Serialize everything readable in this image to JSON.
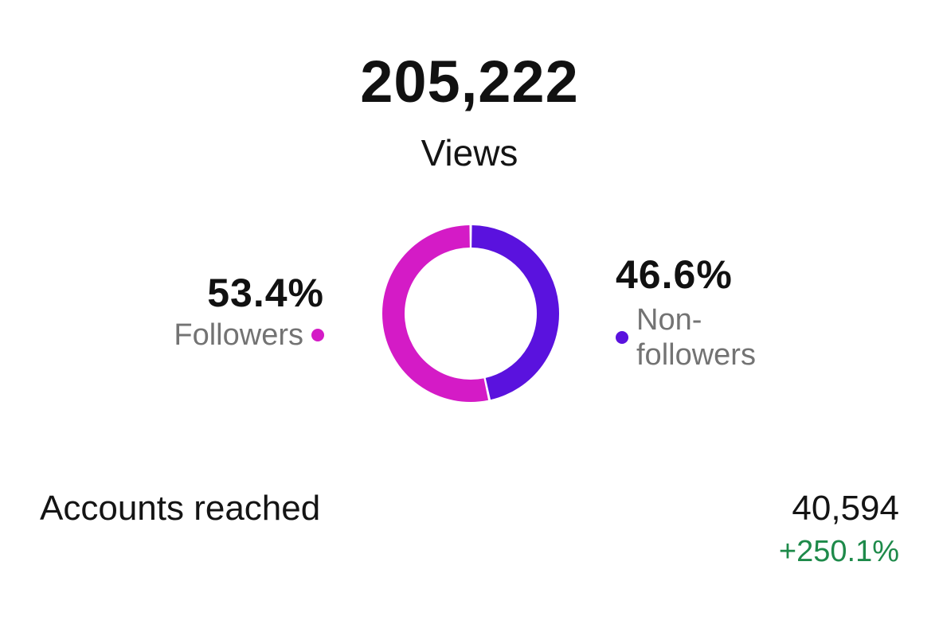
{
  "views": {
    "total": "205,222",
    "label": "Views"
  },
  "audience": {
    "followers": {
      "percent": "53.4%",
      "label": "Followers",
      "value": 53.4,
      "color": "#D41BC6"
    },
    "non_followers": {
      "percent": "46.6%",
      "label": "Non-\nfollowers",
      "value": 46.6,
      "color": "#5A12DE"
    }
  },
  "accounts_reached": {
    "label": "Accounts reached",
    "value": "40,594",
    "change": "+250.1%",
    "change_color": "#1E8A4A"
  }
}
